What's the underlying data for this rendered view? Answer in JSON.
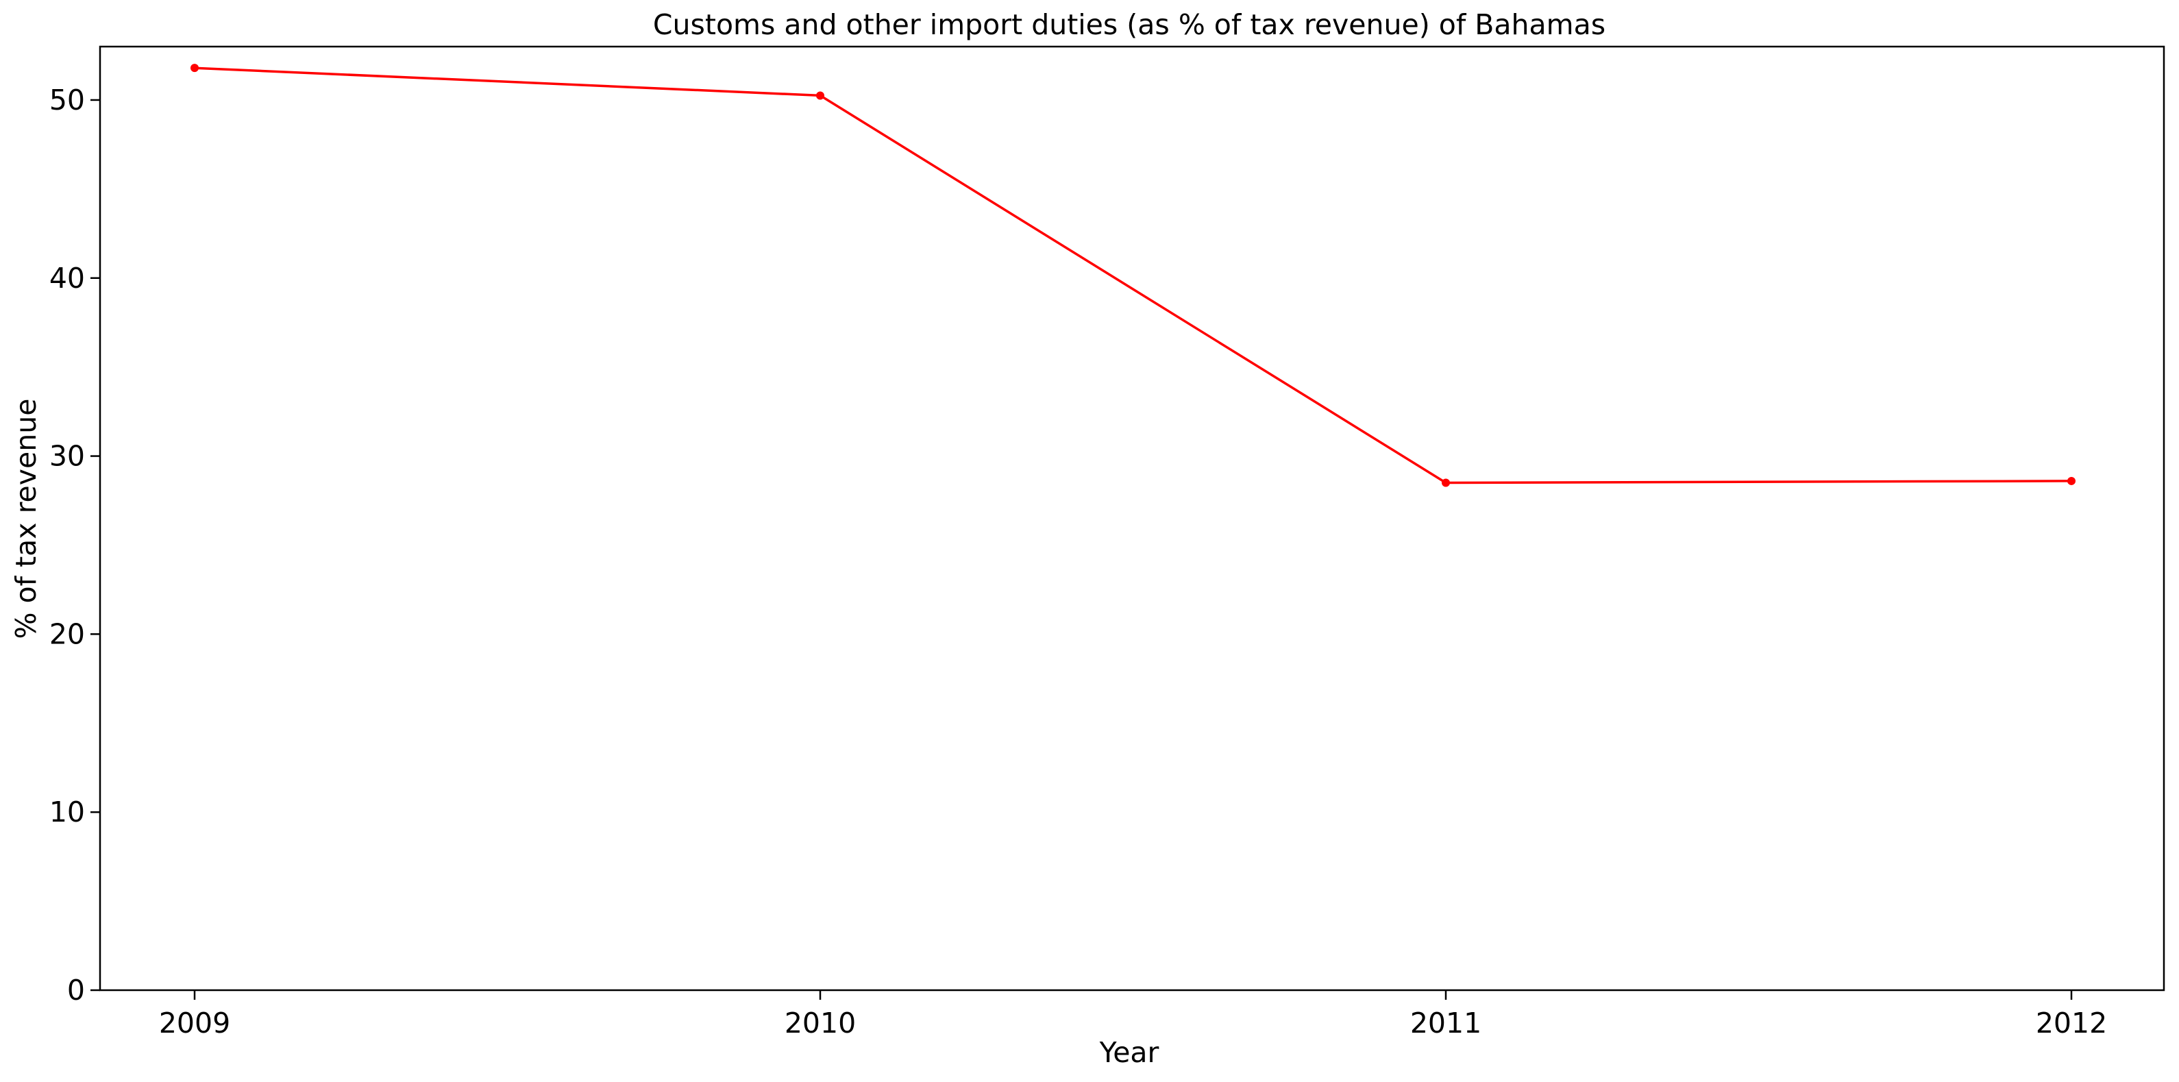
{
  "chart_data": {
    "type": "line",
    "title": "Customs and other import duties (as % of tax revenue) of Bahamas",
    "xlabel": "Year",
    "ylabel": "% of tax revenue",
    "categories": [
      "2009",
      "2010",
      "2011",
      "2012"
    ],
    "series": [
      {
        "values": [
          51.8,
          50.25,
          28.5,
          28.6
        ],
        "color": "#ff0000",
        "marker": "circle"
      }
    ],
    "ylim": [
      0,
      53
    ],
    "yticks": [
      0,
      10,
      20,
      30,
      40,
      50
    ],
    "grid": false,
    "legend": "none"
  }
}
